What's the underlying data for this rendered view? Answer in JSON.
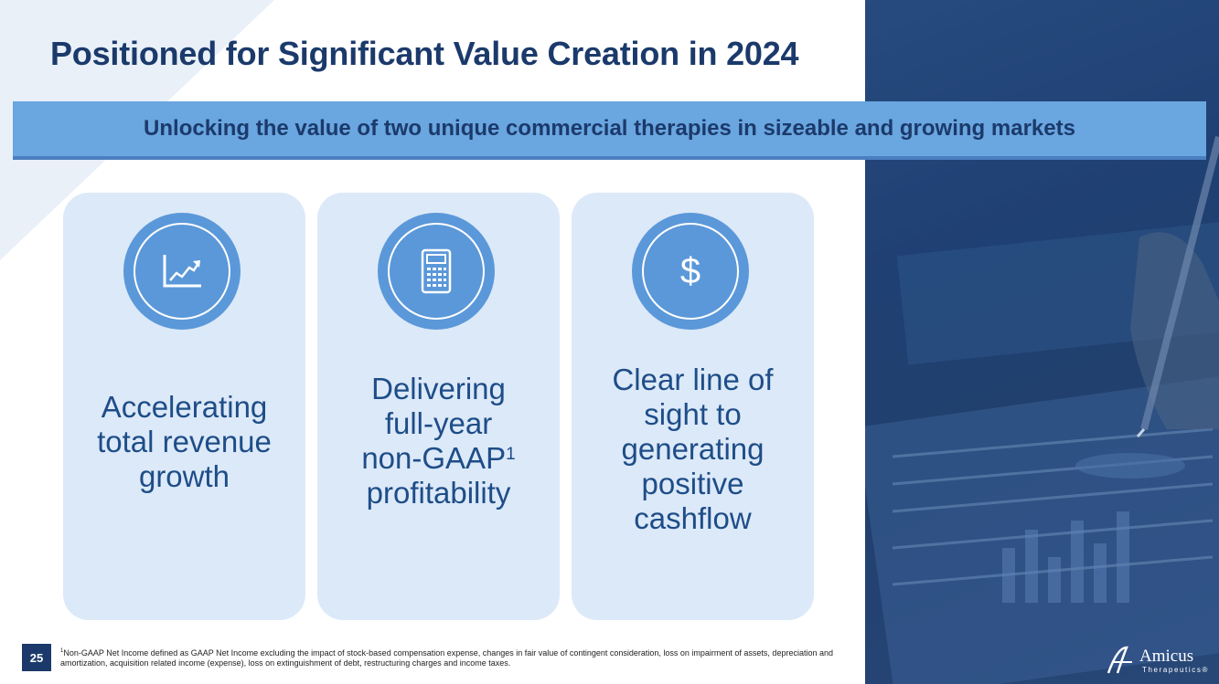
{
  "slide": {
    "title": "Positioned for Significant Value Creation in 2024",
    "banner": "Unlocking the value of two unique commercial therapies in sizeable and growing markets",
    "page_number": "25"
  },
  "cards": [
    {
      "icon": "trend-chart-icon",
      "lines": [
        "Accelerating",
        "total revenue",
        "growth"
      ]
    },
    {
      "icon": "calculator-icon",
      "lines": [
        "Delivering",
        "full-year",
        "non-GAAP",
        "profitability"
      ],
      "superscript": "1"
    },
    {
      "icon": "dollar-icon",
      "symbol": "$",
      "lines": [
        "Clear line of",
        "sight to",
        "generating",
        "positive",
        "cashflow"
      ]
    }
  ],
  "footnote": {
    "marker": "1",
    "text": "Non-GAAP Net Income defined as GAAP Net Income excluding the impact of stock-based compensation expense, changes in fair value of contingent consideration, loss on impairment of assets, depreciation and amortization, acquisition related income (expense), loss on extinguishment of debt, restructuring charges and income taxes."
  },
  "logo": {
    "name": "Amicus",
    "sub": "Therapeutics®"
  },
  "colors": {
    "navy": "#1b3a6b",
    "banner": "#6aa6e0",
    "card": "#dce9f8",
    "icon_circle": "#5b98d9",
    "card_text": "#1e4d88"
  }
}
